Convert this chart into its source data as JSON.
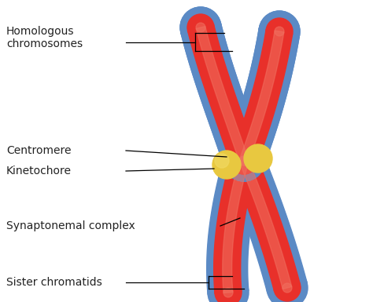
{
  "background_color": "#ffffff",
  "red_color": "#e8302a",
  "red_light": "#f07060",
  "blue_color": "#5b8ac5",
  "blue_dark": "#4a72a8",
  "gold_color": "#e8c840",
  "gold_light": "#f0d860",
  "text_color": "#222222",
  "label_fontsize": 10.0,
  "figsize": [
    4.74,
    3.85
  ],
  "dpi": 100,
  "labels": {
    "homologous": "Homologous\nchromosomes",
    "centromere": "Centromere",
    "kinetochore": "Kinetochore",
    "synaptonemal": "Synaptonemal complex",
    "sister": "Sister chromatids"
  }
}
